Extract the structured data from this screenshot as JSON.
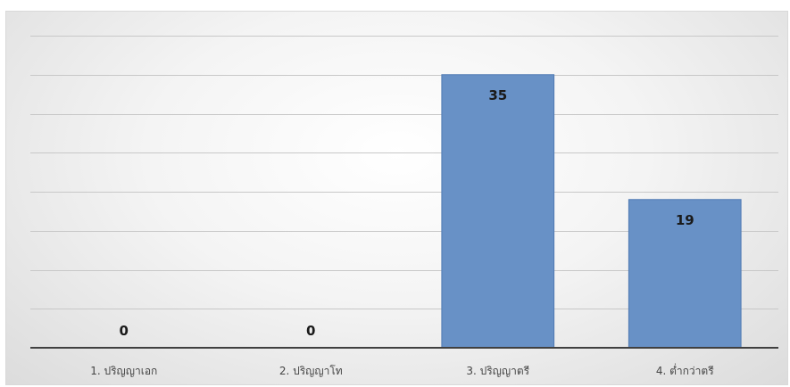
{
  "chart_data": {
    "type": "bar",
    "title": "",
    "xlabel": "",
    "ylabel": "",
    "categories": [
      "1. ปริญญาเอก",
      "2. ปริญญาโท",
      "3. ปริญญาตรี",
      "4. ต่ำกว่าตรี"
    ],
    "values": [
      0,
      0,
      35,
      19
    ],
    "data_labels": [
      "0",
      "0",
      "35",
      "19"
    ],
    "ylim": [
      0,
      40
    ],
    "grid": true,
    "y_axis_visible": false,
    "legend": "none",
    "colors": {
      "bar": "#6891c6",
      "bar_edge": "#4f7ab3",
      "gridline": "#c8c8c8",
      "axis": "#404040"
    }
  }
}
